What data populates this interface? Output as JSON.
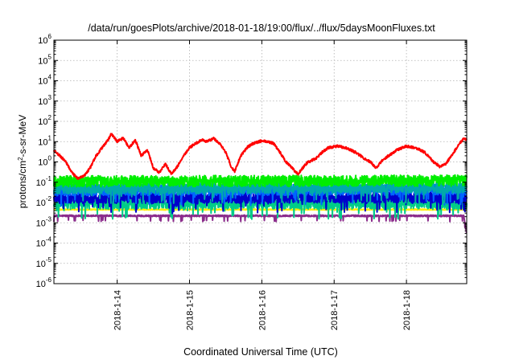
{
  "chart_data": {
    "type": "line",
    "title": "/data/run/goesPlots/archive/2018-01-18/19:00/flux/../flux/5daysMoonFluxes.txt",
    "xlabel": "Coordinated Universal Time (UTC)",
    "ylabel": "protons/cm²-s-sr-MeV",
    "yscale": "log",
    "ylim": [
      "1e-6",
      "1e6"
    ],
    "yticks": [
      {
        "exp": "-6",
        "value": 1e-06
      },
      {
        "exp": "-5",
        "value": 1e-05
      },
      {
        "exp": "-4",
        "value": 0.0001
      },
      {
        "exp": "-3",
        "value": 0.001
      },
      {
        "exp": "-2",
        "value": 0.01
      },
      {
        "exp": "-1",
        "value": 0.1
      },
      {
        "exp": "0",
        "value": 1
      },
      {
        "exp": "1",
        "value": 10
      },
      {
        "exp": "2",
        "value": 100
      },
      {
        "exp": "3",
        "value": 1000
      },
      {
        "exp": "4",
        "value": 10000
      },
      {
        "exp": "5",
        "value": 100000
      },
      {
        "exp": "6",
        "value": 1000000
      }
    ],
    "xlim": [
      "2018-01-13 03:00",
      "2018-01-18 20:00"
    ],
    "xticks": [
      "2018-1-14",
      "2018-1-15",
      "2018-1-16",
      "2018-1-17",
      "2018-1-18"
    ],
    "grid": true,
    "legend": "none",
    "series": [
      {
        "color": "#ff0000",
        "width": 2,
        "points": [
          [
            "2018-01-13 03:00",
            3.5
          ],
          [
            "2018-01-13 05:00",
            2.0
          ],
          [
            "2018-01-13 07:00",
            1.0
          ],
          [
            "2018-01-13 09:00",
            0.3
          ],
          [
            "2018-01-13 11:00",
            0.15
          ],
          [
            "2018-01-13 13:00",
            0.2
          ],
          [
            "2018-01-13 15:00",
            0.5
          ],
          [
            "2018-01-13 17:00",
            2.0
          ],
          [
            "2018-01-13 19:00",
            5.0
          ],
          [
            "2018-01-13 21:00",
            12
          ],
          [
            "2018-01-13 22:00",
            25
          ],
          [
            "2018-01-14 00:00",
            10
          ],
          [
            "2018-01-14 02:00",
            15
          ],
          [
            "2018-01-14 04:00",
            5
          ],
          [
            "2018-01-14 06:00",
            12
          ],
          [
            "2018-01-14 08:00",
            2
          ],
          [
            "2018-01-14 10:00",
            4
          ],
          [
            "2018-01-14 12:00",
            0.5
          ],
          [
            "2018-01-14 14:00",
            0.3
          ],
          [
            "2018-01-14 16:00",
            0.8
          ],
          [
            "2018-01-14 18:00",
            0.25
          ],
          [
            "2018-01-14 20:00",
            0.6
          ],
          [
            "2018-01-14 22:00",
            2.0
          ],
          [
            "2018-01-15 00:00",
            5.0
          ],
          [
            "2018-01-15 02:00",
            8
          ],
          [
            "2018-01-15 04:00",
            12
          ],
          [
            "2018-01-15 06:00",
            10
          ],
          [
            "2018-01-15 08:00",
            15
          ],
          [
            "2018-01-15 10:00",
            8
          ],
          [
            "2018-01-15 12:00",
            3
          ],
          [
            "2018-01-15 14:00",
            0.5
          ],
          [
            "2018-01-15 15:00",
            0.35
          ],
          [
            "2018-01-15 17:00",
            2.0
          ],
          [
            "2018-01-15 19:00",
            5
          ],
          [
            "2018-01-15 21:00",
            8
          ],
          [
            "2018-01-16 00:00",
            11
          ],
          [
            "2018-01-16 02:00",
            10
          ],
          [
            "2018-01-16 04:00",
            8
          ],
          [
            "2018-01-16 06:00",
            3
          ],
          [
            "2018-01-16 08:00",
            1.0
          ],
          [
            "2018-01-16 10:00",
            0.5
          ],
          [
            "2018-01-16 12:00",
            0.25
          ],
          [
            "2018-01-16 13:00",
            0.4
          ],
          [
            "2018-01-16 15:00",
            0.9
          ],
          [
            "2018-01-16 18:00",
            1.5
          ],
          [
            "2018-01-16 20:00",
            3.0
          ],
          [
            "2018-01-16 22:00",
            5.0
          ],
          [
            "2018-01-17 01:00",
            6.0
          ],
          [
            "2018-01-17 04:00",
            5.0
          ],
          [
            "2018-01-17 07:00",
            3.0
          ],
          [
            "2018-01-17 10:00",
            1.5
          ],
          [
            "2018-01-17 12:00",
            1.0
          ],
          [
            "2018-01-17 14:00",
            0.5
          ],
          [
            "2018-01-17 16:00",
            1.2
          ],
          [
            "2018-01-17 18:00",
            2.0
          ],
          [
            "2018-01-17 21:00",
            4.0
          ],
          [
            "2018-01-18 00:00",
            6.0
          ],
          [
            "2018-01-18 03:00",
            5.0
          ],
          [
            "2018-01-18 06:00",
            3.0
          ],
          [
            "2018-01-18 09:00",
            1.0
          ],
          [
            "2018-01-18 11:00",
            0.6
          ],
          [
            "2018-01-18 13:00",
            0.8
          ],
          [
            "2018-01-18 15:00",
            2.0
          ],
          [
            "2018-01-18 17:00",
            6.0
          ],
          [
            "2018-01-18 19:00",
            15
          ],
          [
            "2018-01-18 20:00",
            12
          ]
        ]
      },
      {
        "color": "#00ee00",
        "width": 2,
        "points": [
          [
            "2018-01-13 03:00",
            0.11
          ],
          [
            "2018-01-18 20:00",
            0.12
          ]
        ]
      },
      {
        "color": "#00aaaa",
        "width": 2,
        "points": [
          [
            "2018-01-13 03:00",
            0.05
          ],
          [
            "2018-01-18 20:00",
            0.055
          ]
        ]
      },
      {
        "color": "#0066ff",
        "width": 2,
        "points": [
          [
            "2018-01-13 03:00",
            0.04
          ],
          [
            "2018-01-18 20:00",
            0.045
          ]
        ]
      },
      {
        "color": "#0000cc",
        "width": 2,
        "points": [
          [
            "2018-01-13 03:00",
            0.017
          ],
          [
            "2018-01-18 20:00",
            0.018
          ]
        ]
      },
      {
        "color": "#00cc88",
        "width": 2,
        "points": [
          [
            "2018-01-13 03:00",
            0.009
          ],
          [
            "2018-01-18 20:00",
            0.009
          ]
        ]
      },
      {
        "color": "#ffee00",
        "width": 2,
        "points": [
          [
            "2018-01-13 03:00",
            0.0045
          ],
          [
            "2018-01-18 20:00",
            0.0045
          ]
        ]
      },
      {
        "color": "#8b2c8b",
        "width": 2,
        "points": [
          [
            "2018-01-13 03:00",
            0.0022
          ],
          [
            "2018-01-18 19:00",
            0.0022
          ],
          [
            "2018-01-18 20:00",
            0.0003
          ]
        ]
      }
    ]
  }
}
